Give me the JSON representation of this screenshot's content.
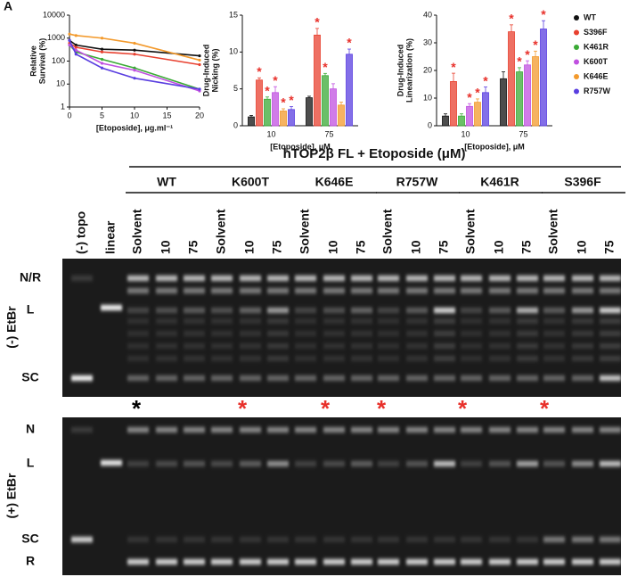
{
  "panel_label": "A",
  "chart_data": [
    {
      "type": "line",
      "ylabel": [
        "Relative",
        "Survival (%)"
      ],
      "xlabel": "[Etoposide], μg.ml⁻¹",
      "x": [
        0,
        1,
        5,
        10,
        20
      ],
      "xlim": [
        0,
        20
      ],
      "xticks": [
        0,
        5,
        10,
        15,
        20
      ],
      "ylim": [
        1,
        10000
      ],
      "yticks": [
        1,
        10,
        100,
        1000,
        10000
      ],
      "log_y": true,
      "series": [
        {
          "name": "WT",
          "color": "#111111",
          "values": [
            800,
            500,
            330,
            300,
            170
          ]
        },
        {
          "name": "S396F",
          "color": "#e8402f",
          "values": [
            600,
            400,
            250,
            200,
            70
          ]
        },
        {
          "name": "K461R",
          "color": "#3aaa35",
          "values": [
            500,
            250,
            120,
            50,
            6
          ]
        },
        {
          "name": "K600T",
          "color": "#c050e0",
          "values": [
            500,
            300,
            80,
            40,
            5
          ]
        },
        {
          "name": "K646E",
          "color": "#f39a2c",
          "values": [
            1500,
            1300,
            1000,
            600,
            110
          ]
        },
        {
          "name": "R757W",
          "color": "#5a3fe0",
          "values": [
            800,
            200,
            50,
            18,
            6
          ]
        }
      ]
    },
    {
      "type": "bar",
      "ylabel": [
        "Drug-Induced",
        "Nicking (%)"
      ],
      "xlabel": "[Etoposide], μM",
      "categories": [
        "10",
        "75"
      ],
      "ylim": [
        0,
        15
      ],
      "yticks": [
        0,
        5,
        10,
        15
      ],
      "star_color": "#e8302a",
      "series": [
        {
          "name": "WT",
          "color": "#111111",
          "values": [
            1.2,
            3.8
          ],
          "errors": [
            0.2,
            0.2
          ],
          "stars": [
            null,
            null
          ]
        },
        {
          "name": "S396F",
          "color": "#e8402f",
          "values": [
            6.2,
            12.3
          ],
          "errors": [
            0.3,
            0.9
          ],
          "stars": [
            "*",
            "*"
          ]
        },
        {
          "name": "K461R",
          "color": "#3aaa35",
          "values": [
            3.6,
            6.8
          ],
          "errors": [
            0.3,
            0.3
          ],
          "stars": [
            "*",
            "*"
          ]
        },
        {
          "name": "K600T",
          "color": "#c050e0",
          "values": [
            4.5,
            5.0
          ],
          "errors": [
            0.8,
            0.7
          ],
          "stars": [
            "*",
            null
          ]
        },
        {
          "name": "K646E",
          "color": "#f39a2c",
          "values": [
            2.0,
            2.8
          ],
          "errors": [
            0.3,
            0.4
          ],
          "stars": [
            "*",
            null
          ]
        },
        {
          "name": "R757W",
          "color": "#5a3fe0",
          "values": [
            2.2,
            9.7
          ],
          "errors": [
            0.4,
            0.7
          ],
          "stars": [
            "*",
            "*"
          ]
        }
      ]
    },
    {
      "type": "bar",
      "ylabel": [
        "Drug-Induced",
        "Linearization (%)"
      ],
      "xlabel": "[Etoposide], μM",
      "categories": [
        "10",
        "75"
      ],
      "ylim": [
        0,
        40
      ],
      "yticks": [
        0,
        10,
        20,
        30,
        40
      ],
      "star_color": "#e8302a",
      "series": [
        {
          "name": "WT",
          "color": "#111111",
          "values": [
            3.5,
            17
          ],
          "errors": [
            0.8,
            2.5
          ],
          "stars": [
            null,
            null
          ]
        },
        {
          "name": "S396F",
          "color": "#e8402f",
          "values": [
            16,
            34
          ],
          "errors": [
            3,
            2.5
          ],
          "stars": [
            "*",
            "*"
          ]
        },
        {
          "name": "K461R",
          "color": "#3aaa35",
          "values": [
            3.5,
            19.5
          ],
          "errors": [
            0.8,
            1.5
          ],
          "stars": [
            null,
            "*"
          ]
        },
        {
          "name": "K600T",
          "color": "#c050e0",
          "values": [
            7,
            22
          ],
          "errors": [
            1,
            1.5
          ],
          "stars": [
            "*",
            "*"
          ]
        },
        {
          "name": "K646E",
          "color": "#f39a2c",
          "values": [
            8.5,
            25
          ],
          "errors": [
            1.2,
            2
          ],
          "stars": [
            "*",
            "*"
          ]
        },
        {
          "name": "R757W",
          "color": "#5a3fe0",
          "values": [
            12,
            35
          ],
          "errors": [
            2,
            3
          ],
          "stars": [
            "*",
            "*"
          ]
        }
      ]
    }
  ],
  "gel": {
    "title": "hTOP2β FL + Etoposide (μM)",
    "control_lanes": [
      "(-) topo",
      "linear"
    ],
    "groups": [
      {
        "name": "WT",
        "lanes": [
          "Solvent",
          "10",
          "75"
        ],
        "marker": "*",
        "marker_color": "#000000"
      },
      {
        "name": "K600T",
        "lanes": [
          "Solvent",
          "10",
          "75"
        ],
        "marker": "*",
        "marker_color": "#e8302a"
      },
      {
        "name": "K646E",
        "lanes": [
          "Solvent",
          "10",
          "75"
        ],
        "marker": "*",
        "marker_color": "#e8302a"
      },
      {
        "name": "R757W",
        "lanes": [
          "Solvent",
          "10",
          "75"
        ],
        "marker": "*",
        "marker_color": "#e8302a"
      },
      {
        "name": "K461R",
        "lanes": [
          "Solvent",
          "10",
          "75"
        ],
        "marker": "*",
        "marker_color": "#e8302a"
      },
      {
        "name": "S396F",
        "lanes": [
          "Solvent",
          "10",
          "75"
        ],
        "marker": "*",
        "marker_color": "#e8302a"
      }
    ],
    "panels": [
      {
        "label": "(-) EtBr",
        "bands": [
          "N/R",
          "L",
          "SC"
        ]
      },
      {
        "label": "(+) EtBr",
        "bands": [
          "N",
          "L",
          "SC",
          "R"
        ]
      }
    ]
  }
}
